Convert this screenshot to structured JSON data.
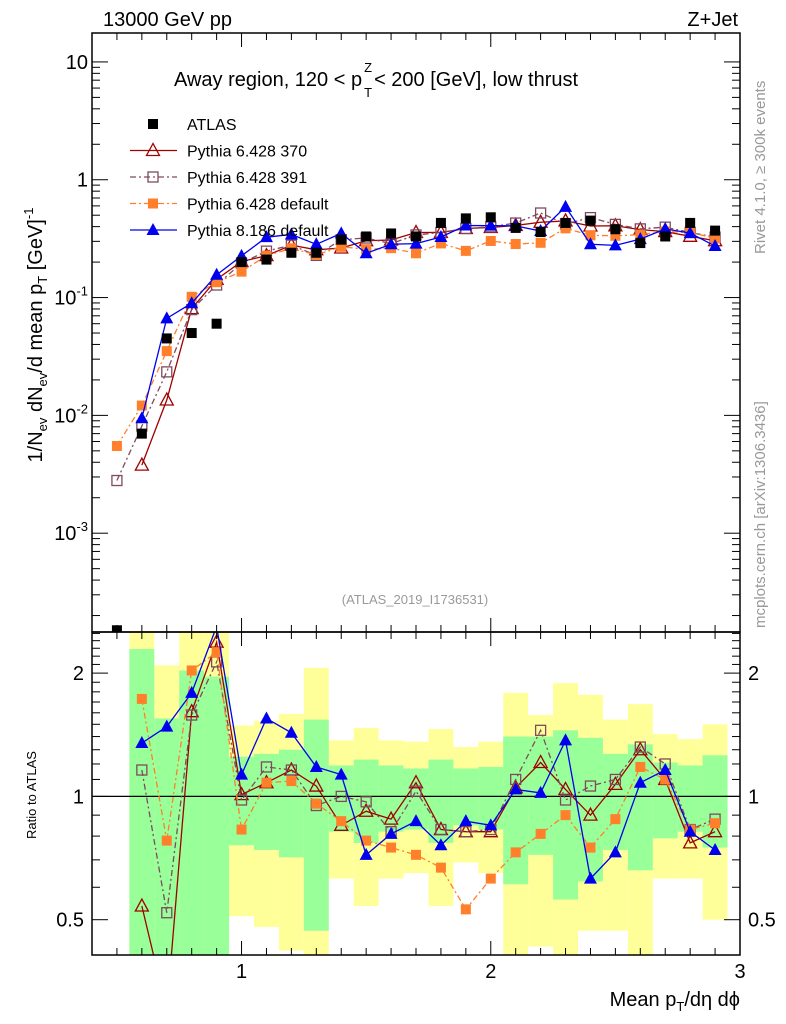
{
  "header": {
    "left": "13000 GeV pp",
    "right": "Z+Jet"
  },
  "title": {
    "p1": "Away region, 120 < p",
    "sup": "Z",
    "sub": "T",
    "p2": " < 200 [GeV], low thrust"
  },
  "ylabel": {
    "p1": "1/N",
    "s1": "ev",
    "p2": " dN",
    "s2": "ev",
    "p3": "/d mean p",
    "s3": "T",
    "p4": " [GeV]",
    "sup": "-1"
  },
  "xlabel": {
    "p1": "Mean p",
    "s1": "T",
    "p2": "/dη dϕ"
  },
  "ratio_label": "Ratio to ATLAS",
  "side_top": "Rivet 4.1.0, ≥ 300k events",
  "side_bottom": "mcplots.cern.ch [arXiv:1306.3436]",
  "analysis": "(ATLAS_2019_I1736531)",
  "y_ticks_main": [
    {
      "v": 10,
      "b": "10",
      "e": ""
    },
    {
      "v": 1,
      "b": "1",
      "e": ""
    },
    {
      "v": 0.1,
      "b": "10",
      "e": "-1"
    },
    {
      "v": 0.01,
      "b": "10",
      "e": "-2"
    },
    {
      "v": 0.001,
      "b": "10",
      "e": "-3"
    }
  ],
  "y_ticks_ratio": [
    {
      "v": 0.5,
      "l": "0.5"
    },
    {
      "v": 1,
      "l": "1"
    },
    {
      "v": 2,
      "l": "2"
    }
  ],
  "x_ticks": [
    {
      "v": 1,
      "l": "1"
    },
    {
      "v": 2,
      "l": "2"
    },
    {
      "v": 3,
      "l": "3"
    }
  ],
  "chart_data": {
    "type": "scatter",
    "xlim": [
      0.4,
      3.0
    ],
    "ylim_main": [
      0.000145,
      17.6
    ],
    "ylim_ratio": [
      0.41,
      2.52
    ],
    "yscale": "log",
    "legend_position": "top-left",
    "x": [
      0.6,
      0.7,
      0.8,
      0.9,
      1.0,
      1.1,
      1.2,
      1.3,
      1.4,
      1.5,
      1.6,
      1.7,
      1.8,
      1.9,
      2.0,
      2.1,
      2.2,
      2.3,
      2.4,
      2.5,
      2.6,
      2.7,
      2.8,
      2.9
    ],
    "data": {
      "name": "ATLAS",
      "color": "#000000",
      "extra": [
        [
          0.5,
          0.00015
        ]
      ],
      "values": [
        0.007,
        0.045,
        0.05,
        0.06,
        0.2,
        0.21,
        0.24,
        0.24,
        0.31,
        0.33,
        0.35,
        0.33,
        0.43,
        0.47,
        0.48,
        0.39,
        0.36,
        0.43,
        0.45,
        0.38,
        0.29,
        0.33,
        0.43,
        0.37
      ],
      "band_inner": [
        [
          0.3,
          2.29
        ],
        [
          0.3,
          1.55
        ],
        [
          0.3,
          2.03
        ],
        [
          0.3,
          1.96
        ],
        [
          0.76,
          1.25
        ],
        [
          0.74,
          1.27
        ],
        [
          0.71,
          1.3
        ],
        [
          0.47,
          1.54
        ],
        [
          0.82,
          1.19
        ],
        [
          0.77,
          1.23
        ],
        [
          0.82,
          1.19
        ],
        [
          0.83,
          1.17
        ],
        [
          0.77,
          1.23
        ],
        [
          0.85,
          1.17
        ],
        [
          0.83,
          1.18
        ],
        [
          0.61,
          1.4
        ],
        [
          0.72,
          1.4
        ],
        [
          0.56,
          1.45
        ],
        [
          0.62,
          1.39
        ],
        [
          0.74,
          1.27
        ],
        [
          0.66,
          1.34
        ],
        [
          0.79,
          1.21
        ],
        [
          0.82,
          1.19
        ],
        [
          0.75,
          1.26
        ]
      ],
      "band_outer": [
        [
          0.3,
          2.6
        ],
        [
          0.45,
          2.09
        ],
        [
          0.3,
          2.6
        ],
        [
          0.3,
          2.6
        ],
        [
          0.51,
          1.49
        ],
        [
          0.48,
          1.53
        ],
        [
          0.42,
          1.59
        ],
        [
          0.3,
          2.06
        ],
        [
          0.63,
          1.37
        ],
        [
          0.54,
          1.47
        ],
        [
          0.63,
          1.37
        ],
        [
          0.65,
          1.36
        ],
        [
          0.54,
          1.46
        ],
        [
          0.69,
          1.32
        ],
        [
          0.65,
          1.36
        ],
        [
          0.3,
          1.79
        ],
        [
          0.43,
          1.58
        ],
        [
          0.3,
          1.89
        ],
        [
          0.47,
          1.77
        ],
        [
          0.47,
          1.54
        ],
        [
          0.3,
          1.68
        ],
        [
          0.63,
          1.42
        ],
        [
          0.63,
          1.38
        ],
        [
          0.5,
          1.5
        ]
      ],
      "band_colors": {
        "inner": "#99ff99",
        "outer": "#ffff99"
      }
    },
    "series": [
      {
        "name": "Pythia 6.428 370",
        "color": "#a00000",
        "marker": "open-triangle",
        "dash": "",
        "extra": [],
        "ratio": [
          0.54,
          0.3,
          1.61,
          2.38,
          1.01,
          1.08,
          1.16,
          1.06,
          0.85,
          0.92,
          0.88,
          1.08,
          0.83,
          0.82,
          0.82,
          1.05,
          1.21,
          1.04,
          0.9,
          1.07,
          1.3,
          1.1,
          0.77,
          0.82
        ]
      },
      {
        "name": "Pythia 6.428 391",
        "color": "#7f4a5f",
        "marker": "open-square",
        "dash": "6,3,2,3",
        "extra": [
          [
            0.5,
            0.0028
          ]
        ],
        "ratio": [
          1.16,
          0.52,
          1.58,
          2.13,
          0.98,
          1.18,
          1.16,
          0.95,
          1.0,
          0.97,
          0.82,
          1.03,
          0.83,
          0.82,
          0.83,
          1.1,
          1.45,
          0.98,
          1.06,
          1.1,
          1.32,
          1.2,
          0.83,
          0.88
        ]
      },
      {
        "name": "Pythia 6.428 default",
        "color": "#ff7f2a",
        "marker": "filled-square",
        "dash": "6,3,2,3",
        "extra": [
          [
            0.5,
            0.0055
          ]
        ],
        "ratio": [
          1.73,
          0.78,
          2.03,
          2.25,
          0.83,
          1.08,
          1.09,
          0.96,
          0.87,
          0.78,
          0.75,
          0.72,
          0.67,
          0.53,
          0.63,
          0.73,
          0.81,
          0.9,
          0.75,
          0.88,
          1.18,
          1.1,
          0.83,
          0.86
        ]
      },
      {
        "name": "Pythia 8.186 default",
        "color": "#0000ee",
        "marker": "filled-triangle",
        "dash": "",
        "extra": [],
        "ratio": [
          1.35,
          1.48,
          1.79,
          2.6,
          1.13,
          1.55,
          1.43,
          1.18,
          1.13,
          0.72,
          0.81,
          0.87,
          0.76,
          0.87,
          0.85,
          1.04,
          1.02,
          1.37,
          0.63,
          0.73,
          1.08,
          1.16,
          0.82,
          0.74
        ]
      }
    ]
  }
}
